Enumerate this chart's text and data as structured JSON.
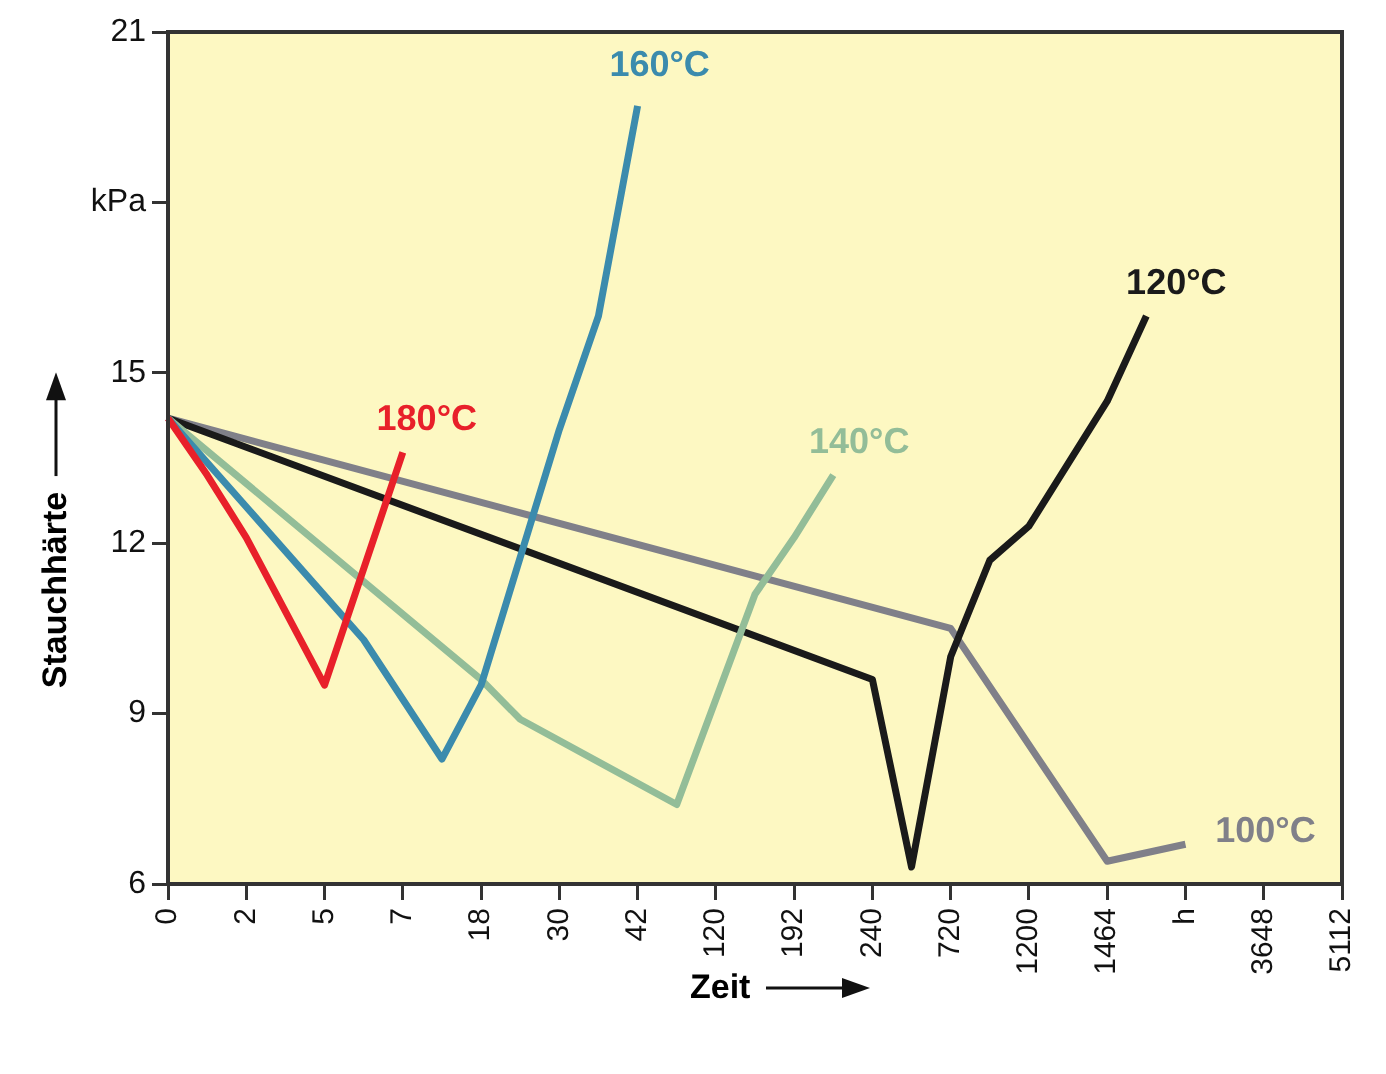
{
  "chart_data": {
    "type": "line",
    "xlabel": "Zeit",
    "ylabel": "Stauchhärte",
    "categories": [
      "0",
      null,
      "2",
      null,
      "5",
      null,
      "7",
      null,
      "18",
      null,
      "30",
      null,
      "42",
      null,
      "120",
      null,
      "192",
      null,
      "240",
      null,
      "720",
      null,
      "1200",
      null,
      "1464",
      null,
      "h",
      null,
      "3648",
      null,
      "5112"
    ],
    "ylim": [
      6,
      21
    ],
    "yticks": [
      6,
      9,
      12,
      15,
      {
        "value": 18,
        "label": "kPa"
      },
      21
    ],
    "grid": false,
    "legend": false,
    "marker": "none",
    "line_style": "solid",
    "series": [
      {
        "name": "180°C",
        "color": "#e8202a",
        "values": [
          14.2,
          13.2,
          12.1,
          10.8,
          9.5,
          null,
          13.6,
          null,
          null,
          null,
          null,
          null,
          null,
          null,
          null,
          null,
          null,
          null,
          null,
          null,
          null,
          null,
          null,
          null,
          null,
          null,
          null,
          null,
          null,
          null,
          null
        ]
      },
      {
        "name": "160°C",
        "color": "#3b8bad",
        "values": [
          14.2,
          null,
          null,
          null,
          null,
          10.3,
          null,
          8.2,
          9.5,
          null,
          14,
          16,
          19.7,
          null,
          null,
          null,
          null,
          null,
          null,
          null,
          null,
          null,
          null,
          null,
          null,
          null,
          null,
          null,
          null,
          null,
          null
        ]
      },
      {
        "name": "140°C",
        "color": "#93bd98",
        "values": [
          14.2,
          null,
          null,
          null,
          null,
          null,
          null,
          null,
          9.6,
          8.9,
          null,
          null,
          null,
          7.4,
          null,
          11.1,
          12.1,
          13.2,
          null,
          null,
          null,
          null,
          null,
          null,
          null,
          null,
          null,
          null,
          null,
          null,
          null
        ]
      },
      {
        "name": "120°C",
        "color": "#1a1a1a",
        "values": [
          14.2,
          null,
          null,
          null,
          null,
          null,
          null,
          null,
          null,
          null,
          null,
          null,
          null,
          null,
          null,
          null,
          null,
          null,
          9.6,
          6.3,
          10,
          11.7,
          12.3,
          null,
          14.5,
          16,
          null,
          null,
          null,
          null,
          null
        ]
      },
      {
        "name": "100°C",
        "color": "#808089",
        "values": [
          14.2,
          null,
          null,
          null,
          null,
          null,
          null,
          null,
          null,
          null,
          null,
          null,
          null,
          null,
          null,
          null,
          null,
          null,
          null,
          null,
          10.5,
          null,
          null,
          null,
          6.4,
          null,
          6.7,
          null,
          null,
          null,
          null
        ]
      }
    ]
  }
}
